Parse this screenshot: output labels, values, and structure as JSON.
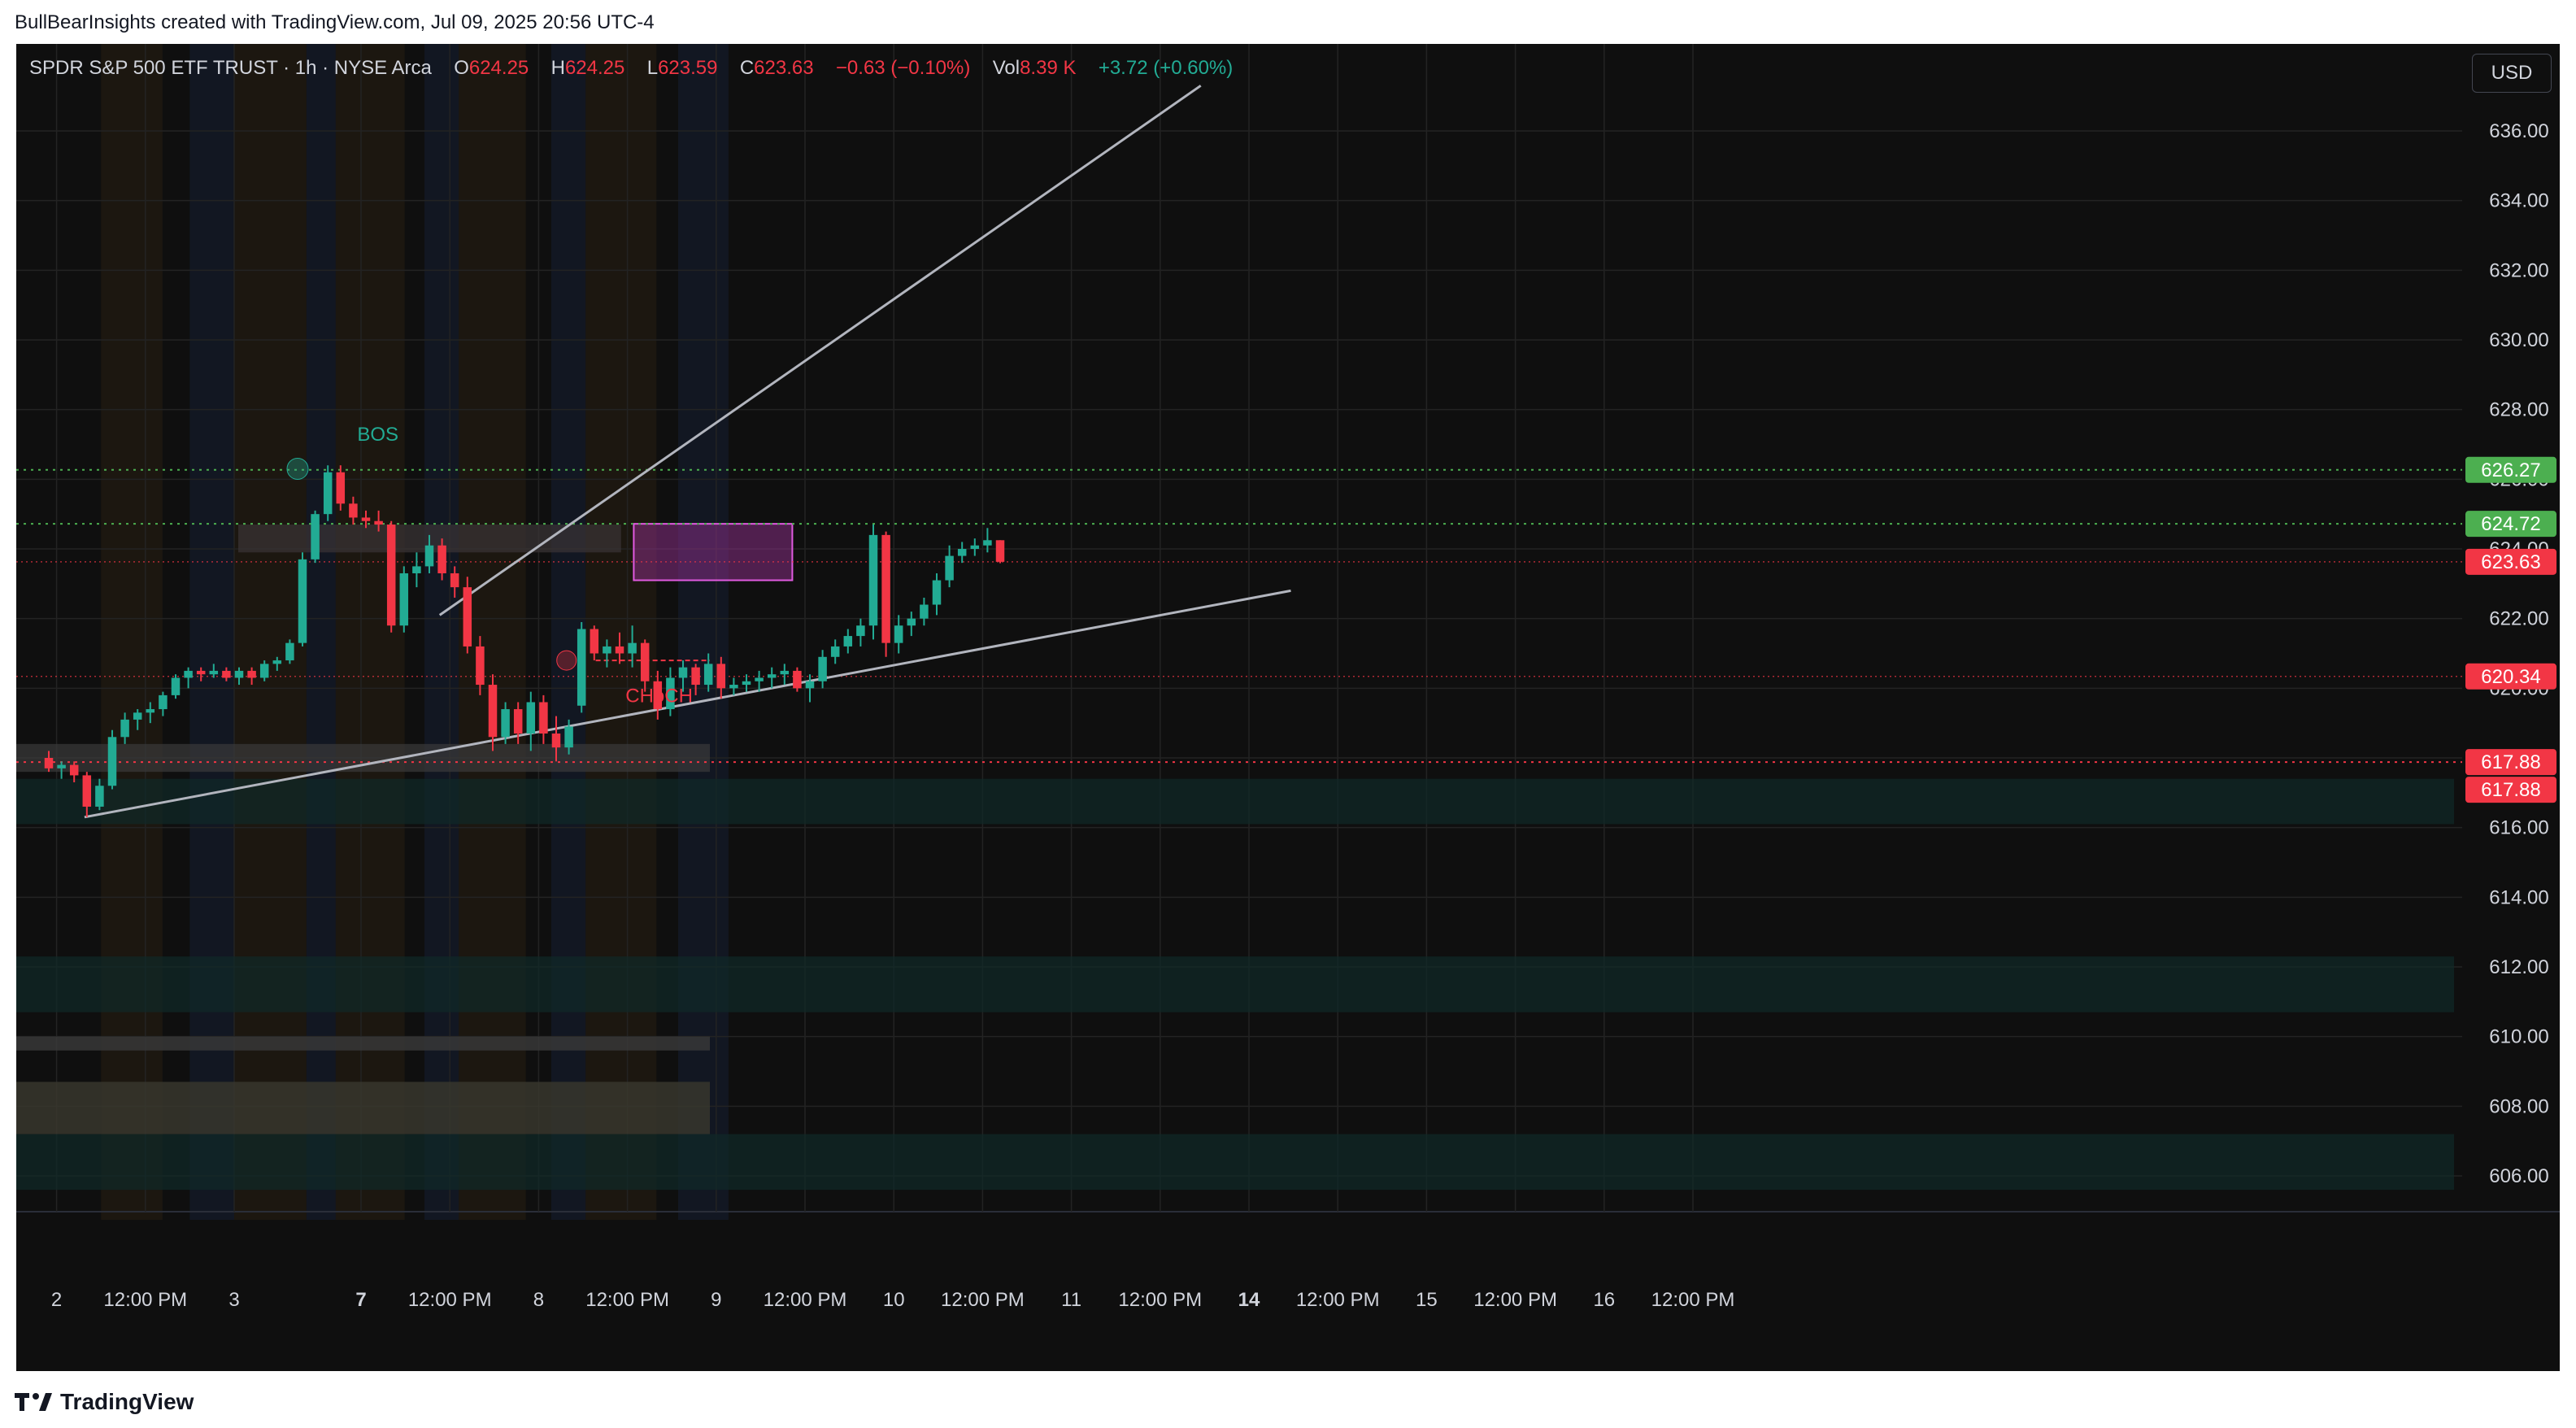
{
  "header": {
    "attribution": "BullBearInsights created with TradingView.com, Jul 09, 2025 20:56 UTC-4"
  },
  "footer": {
    "brand": "TradingView"
  },
  "currency_button": "USD",
  "legend": {
    "symbol": "SPDR S&P 500 ETF TRUST · 1h · NYSE Arca",
    "o_label": "O",
    "o": "624.25",
    "h_label": "H",
    "h": "624.25",
    "l_label": "L",
    "l": "623.59",
    "c_label": "C",
    "c": "623.63",
    "change": "−0.63 (−0.10%)",
    "vol_label": "Vol",
    "vol": "8.39 K",
    "vol_change": "+3.72 (+0.60%)"
  },
  "colors": {
    "up": "#22ab94",
    "down": "#f23645",
    "bg": "#0f0f0f",
    "grid": "#232323",
    "text": "#d1d4dc",
    "green_tag": "#4caf50",
    "red_tag": "#f23645"
  },
  "chart_data": {
    "type": "candlestick",
    "ylim": [
      603.5,
      637.5
    ],
    "y_ticks": [
      606,
      608,
      610,
      612,
      614,
      616,
      618,
      620,
      622,
      624,
      626,
      628,
      630,
      632,
      634,
      636
    ],
    "y_tick_labels": [
      "606.00",
      "608.00",
      "610.00",
      "612.00",
      "614.00",
      "616.00",
      "618.00",
      "620.00",
      "622.00",
      "624.00",
      "626.00",
      "628.00",
      "630.00",
      "632.00",
      "634.00",
      "636.00"
    ],
    "x_ticks": [
      {
        "i": -4,
        "label": "2",
        "bold": false
      },
      {
        "i": 3,
        "label": "12:00 PM",
        "bold": false
      },
      {
        "i": 10,
        "label": "3",
        "bold": false
      },
      {
        "i": 20,
        "label": "7",
        "bold": true
      },
      {
        "i": 27,
        "label": "12:00 PM",
        "bold": false
      },
      {
        "i": 34,
        "label": "8",
        "bold": false
      },
      {
        "i": 41,
        "label": "12:00 PM",
        "bold": false
      },
      {
        "i": 48,
        "label": "9",
        "bold": false
      },
      {
        "i": 55,
        "label": "12:00 PM",
        "bold": false
      },
      {
        "i": 62,
        "label": "10",
        "bold": false
      },
      {
        "i": 69,
        "label": "12:00 PM",
        "bold": false
      },
      {
        "i": 76,
        "label": "11",
        "bold": false
      },
      {
        "i": 83,
        "label": "12:00 PM",
        "bold": false
      },
      {
        "i": 90,
        "label": "14",
        "bold": true
      },
      {
        "i": 97,
        "label": "12:00 PM",
        "bold": false
      },
      {
        "i": 104,
        "label": "15",
        "bold": false
      },
      {
        "i": 111,
        "label": "12:00 PM",
        "bold": false
      },
      {
        "i": 118,
        "label": "16",
        "bold": false
      },
      {
        "i": 125,
        "label": "12:00 PM",
        "bold": false
      }
    ],
    "candles": [
      [
        618.0,
        618.2,
        617.6,
        617.7
      ],
      [
        617.7,
        617.9,
        617.4,
        617.8
      ],
      [
        617.8,
        617.9,
        617.3,
        617.5
      ],
      [
        617.5,
        617.6,
        616.3,
        616.6
      ],
      [
        616.6,
        617.4,
        616.5,
        617.2
      ],
      [
        617.2,
        618.8,
        617.1,
        618.6
      ],
      [
        618.6,
        619.3,
        618.4,
        619.1
      ],
      [
        619.1,
        619.4,
        618.8,
        619.3
      ],
      [
        619.3,
        619.6,
        619.0,
        619.4
      ],
      [
        619.4,
        619.9,
        619.2,
        619.8
      ],
      [
        619.8,
        620.4,
        619.7,
        620.3
      ],
      [
        620.3,
        620.6,
        620.0,
        620.5
      ],
      [
        620.5,
        620.6,
        620.2,
        620.4
      ],
      [
        620.4,
        620.7,
        620.3,
        620.5
      ],
      [
        620.5,
        620.6,
        620.2,
        620.3
      ],
      [
        620.3,
        620.6,
        620.1,
        620.5
      ],
      [
        620.5,
        620.6,
        620.1,
        620.3
      ],
      [
        620.3,
        620.8,
        620.2,
        620.7
      ],
      [
        620.7,
        620.9,
        620.5,
        620.8
      ],
      [
        620.8,
        621.4,
        620.7,
        621.3
      ],
      [
        621.3,
        623.9,
        621.2,
        623.7
      ],
      [
        623.7,
        625.1,
        623.6,
        625.0
      ],
      [
        625.0,
        626.4,
        624.8,
        626.2
      ],
      [
        626.2,
        626.4,
        625.1,
        625.3
      ],
      [
        625.3,
        625.5,
        624.7,
        624.9
      ],
      [
        624.9,
        625.1,
        624.6,
        624.8
      ],
      [
        624.8,
        625.1,
        624.5,
        624.7
      ],
      [
        624.7,
        624.8,
        621.6,
        621.8
      ],
      [
        621.8,
        623.5,
        621.6,
        623.3
      ],
      [
        623.3,
        623.9,
        622.9,
        623.5
      ],
      [
        623.5,
        624.4,
        623.3,
        624.1
      ],
      [
        624.1,
        624.3,
        623.1,
        623.3
      ],
      [
        623.3,
        623.5,
        622.6,
        622.9
      ],
      [
        622.9,
        623.2,
        621.0,
        621.2
      ],
      [
        621.2,
        621.5,
        619.8,
        620.1
      ],
      [
        620.1,
        620.4,
        618.2,
        618.6
      ],
      [
        618.6,
        619.6,
        618.4,
        619.4
      ],
      [
        619.4,
        619.6,
        618.4,
        618.7
      ],
      [
        618.7,
        619.9,
        618.2,
        619.6
      ],
      [
        619.6,
        619.8,
        618.4,
        618.7
      ],
      [
        618.7,
        619.2,
        617.9,
        618.3
      ],
      [
        618.3,
        619.1,
        618.1,
        618.9
      ],
      [
        619.5,
        621.9,
        619.3,
        621.7
      ],
      [
        621.7,
        621.8,
        620.8,
        621.0
      ],
      [
        621.0,
        621.4,
        620.6,
        621.2
      ],
      [
        621.2,
        621.6,
        620.7,
        621.0
      ],
      [
        621.0,
        621.8,
        620.6,
        621.3
      ],
      [
        621.3,
        621.4,
        619.9,
        620.2
      ],
      [
        620.2,
        620.5,
        619.1,
        619.4
      ],
      [
        619.4,
        620.6,
        619.2,
        620.3
      ],
      [
        620.3,
        620.8,
        619.9,
        620.6
      ],
      [
        620.6,
        620.7,
        619.8,
        620.1
      ],
      [
        620.1,
        621.0,
        619.9,
        620.7
      ],
      [
        620.7,
        620.9,
        619.7,
        620.0
      ],
      [
        620.0,
        620.3,
        619.8,
        620.1
      ],
      [
        620.1,
        620.4,
        619.9,
        620.2
      ],
      [
        620.2,
        620.5,
        619.9,
        620.3
      ],
      [
        620.3,
        620.6,
        620.0,
        620.4
      ],
      [
        620.4,
        620.7,
        620.1,
        620.5
      ],
      [
        620.5,
        620.6,
        619.9,
        620.0
      ],
      [
        620.0,
        620.4,
        619.6,
        620.2
      ],
      [
        620.2,
        621.1,
        620.0,
        620.9
      ],
      [
        620.9,
        621.4,
        620.7,
        621.2
      ],
      [
        621.2,
        621.7,
        621.0,
        621.5
      ],
      [
        621.5,
        622.0,
        621.2,
        621.8
      ],
      [
        621.8,
        624.7,
        621.4,
        624.4
      ],
      [
        624.4,
        624.5,
        620.9,
        621.3
      ],
      [
        621.3,
        622.1,
        621.0,
        621.8
      ],
      [
        621.8,
        622.2,
        621.5,
        622.0
      ],
      [
        622.0,
        622.6,
        621.8,
        622.4
      ],
      [
        622.4,
        623.3,
        622.1,
        623.1
      ],
      [
        623.1,
        624.1,
        622.9,
        623.8
      ],
      [
        623.8,
        624.2,
        623.6,
        624.0
      ],
      [
        624.0,
        624.3,
        623.8,
        624.1
      ],
      [
        624.1,
        624.6,
        623.9,
        624.25
      ],
      [
        624.25,
        624.25,
        623.59,
        623.63
      ]
    ],
    "levels": [
      {
        "price": 626.27,
        "label": "626.27",
        "color": "#4caf50"
      },
      {
        "price": 624.72,
        "label": "624.72",
        "color": "#4caf50"
      },
      {
        "price": 623.63,
        "label": "623.63",
        "color": "#f23645"
      },
      {
        "price": 620.34,
        "label": "620.34",
        "color": "#f23645"
      },
      {
        "price": 617.88,
        "label": "617.88",
        "color": "#f23645"
      },
      {
        "price": 617.88,
        "label": "617.88",
        "color": "#f23645"
      }
    ],
    "annotations": [
      {
        "text": "BOS",
        "i": 26.5,
        "price": 627.0,
        "color": "#22ab94"
      },
      {
        "text": "CHoCH",
        "i": 64,
        "price": 620.0,
        "color": "#f23645"
      }
    ]
  }
}
